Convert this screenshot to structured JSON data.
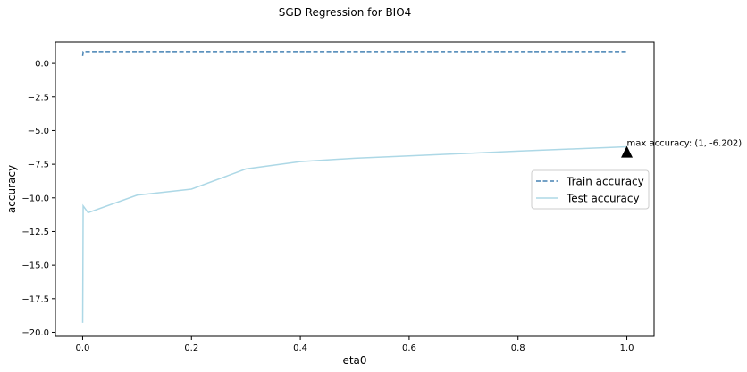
{
  "chart_data": {
    "type": "line",
    "title": "SGD Regression for BIO4",
    "xlabel": "eta0",
    "ylabel": "accuracy",
    "xlim": [
      -0.05,
      1.05
    ],
    "ylim": [
      -20.3,
      1.6
    ],
    "xticks": [
      0.0,
      0.2,
      0.4,
      0.6,
      0.8,
      1.0
    ],
    "xtick_labels": [
      "0.0",
      "0.2",
      "0.4",
      "0.6",
      "0.8",
      "1.0"
    ],
    "yticks": [
      0.0,
      -2.5,
      -5.0,
      -7.5,
      -10.0,
      -12.5,
      -15.0,
      -17.5,
      -20.0
    ],
    "ytick_labels": [
      "0.0",
      "−2.5",
      "−5.0",
      "−7.5",
      "−10.0",
      "−12.5",
      "−15.0",
      "−17.5",
      "−20.0"
    ],
    "grid": false,
    "legend_position": "center-right",
    "x": [
      0.0001,
      0.001,
      0.01,
      0.1,
      0.2,
      0.3,
      0.4,
      0.5,
      0.6,
      0.7,
      0.8,
      0.9,
      1.0
    ],
    "series": [
      {
        "name": "Train accuracy",
        "style": "dashed",
        "color": "#4682b4",
        "values": [
          0.55,
          0.88,
          0.88,
          0.88,
          0.88,
          0.88,
          0.88,
          0.88,
          0.88,
          0.88,
          0.88,
          0.88,
          0.88
        ]
      },
      {
        "name": "Test accuracy",
        "style": "solid",
        "color": "#add8e6",
        "values": [
          -19.3,
          -10.6,
          -11.1,
          -9.8,
          -9.35,
          -7.85,
          -7.3,
          -7.05,
          -6.88,
          -6.7,
          -6.52,
          -6.36,
          -6.202
        ]
      }
    ],
    "annotation": {
      "text": "max accuracy: (1, -6.202)",
      "x": 1.0,
      "y": -6.202,
      "marker": "triangle-up",
      "marker_color": "#000000"
    }
  }
}
